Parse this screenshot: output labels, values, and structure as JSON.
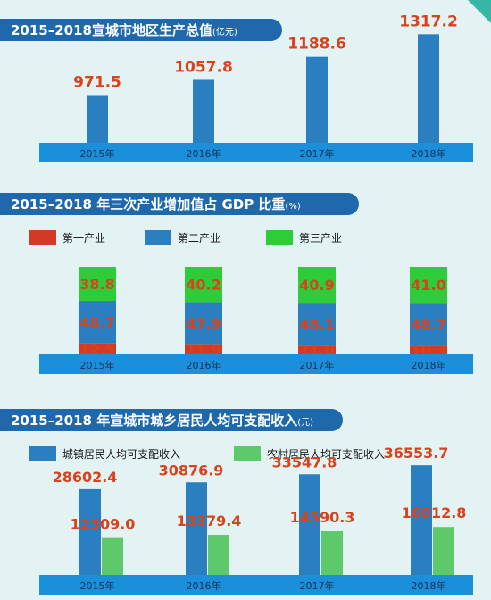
{
  "colors": {
    "background": "#e3f3f4",
    "header_bg": "#1e68ab",
    "header_text": "#ffffff",
    "axis_band": "#1b8fd9",
    "axis_text": "#16325c",
    "bar_blue": "#2a7fc1",
    "label_red": "#d8431d",
    "primary_red": "#d33a26",
    "tertiary_green": "#2fcc39",
    "rural_green": "#5ec96a",
    "legend_text": "#1a1a1a"
  },
  "chart_data": [
    {
      "type": "bar",
      "title": "2015–2018宣城市地区生产总值",
      "unit": "(亿元)",
      "categories": [
        "2015年",
        "2016年",
        "2017年",
        "2018年"
      ],
      "values": [
        971.5,
        1057.8,
        1188.6,
        1317.2
      ],
      "value_labels": [
        "971.5",
        "1057.8",
        "1188.6",
        "1317.2"
      ],
      "ylim": [
        700,
        1400
      ]
    },
    {
      "type": "bar",
      "stacked": true,
      "title": "2015–2018 年三次产业增加值占 GDP 比重",
      "unit": "(%)",
      "categories": [
        "2015年",
        "2016年",
        "2017年",
        "2018年"
      ],
      "series": [
        {
          "name": "第一产业",
          "color": "#d33a26",
          "values": [
            12.5,
            11.9,
            11.0,
            10.3
          ],
          "labels": [
            "12.5",
            "11.9",
            "11.0",
            "10.3"
          ]
        },
        {
          "name": "第二产业",
          "color": "#2a7fc1",
          "values": [
            48.7,
            47.9,
            48.1,
            48.7
          ],
          "labels": [
            "48.7",
            "47.9",
            "48.1",
            "48.7"
          ]
        },
        {
          "name": "第三产业",
          "color": "#2fcc39",
          "values": [
            38.8,
            40.2,
            40.9,
            41.0
          ],
          "labels": [
            "38.8",
            "40.2",
            "40.9",
            "41.0"
          ]
        }
      ],
      "legend": "top"
    },
    {
      "type": "bar",
      "title": "2015–2018 年宣城市城乡居民人均可支配收入",
      "unit": "(元)",
      "categories": [
        "2015年",
        "2016年",
        "2017年",
        "2018年"
      ],
      "series": [
        {
          "name": "城镇居民人均可支配收入",
          "color": "#2a7fc1",
          "values": [
            28602.4,
            30876.9,
            33547.8,
            36553.7
          ],
          "labels": [
            "28602.4",
            "30876.9",
            "33547.8",
            "36553.7"
          ]
        },
        {
          "name": "农村居民人均可支配收入",
          "color": "#5ec96a",
          "values": [
            12309.0,
            13379.4,
            14590.3,
            16012.8
          ],
          "labels": [
            "12309.0",
            "13379.4",
            "14590.3",
            "16012.8"
          ]
        }
      ],
      "legend": "top",
      "ylim": [
        0,
        50000
      ]
    }
  ]
}
